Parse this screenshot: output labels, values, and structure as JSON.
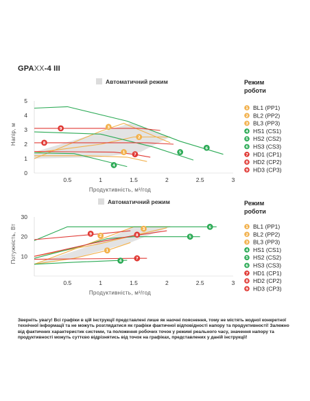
{
  "model": {
    "prefix": "GPA",
    "mid": "XX",
    "suffix": "-4 III"
  },
  "legend_items": [
    {
      "num": "1",
      "label": "BL1 (PP1)",
      "color": "#F2B04A"
    },
    {
      "num": "2",
      "label": "BL2 (PP2)",
      "color": "#F2B04A"
    },
    {
      "num": "3",
      "label": "BL3 (PP3)",
      "color": "#F2B04A"
    },
    {
      "num": "4",
      "label": "HS1 (CS1)",
      "color": "#2BAA55"
    },
    {
      "num": "5",
      "label": "HS2 (CS2)",
      "color": "#2BAA55"
    },
    {
      "num": "6",
      "label": "HS3 (CS3)",
      "color": "#2BAA55"
    },
    {
      "num": "7",
      "label": "HD1 (CP1)",
      "color": "#E03A35"
    },
    {
      "num": "8",
      "label": "HD2 (CP2)",
      "color": "#E03A35"
    },
    {
      "num": "9",
      "label": "HD3 (CP3)",
      "color": "#E03A35"
    }
  ],
  "chart_data": [
    {
      "type": "line",
      "auto_mode_label": "Автоматичний режим",
      "legend_title": [
        "Режим",
        "роботи"
      ],
      "xlabel": "Продуктивність, м³/год",
      "ylabel": "Напір, м",
      "xlim": [
        0,
        3
      ],
      "ylim": [
        0,
        5
      ],
      "x_ticks": [
        0.5,
        1,
        1.5,
        2,
        2.5,
        3
      ],
      "x_tick_labels": [
        "0.5",
        "1",
        "1.5",
        "2",
        "2.5",
        "3"
      ],
      "y_ticks": [
        0,
        1,
        2,
        3,
        4,
        5
      ],
      "y_tick_labels": [
        "0",
        "1",
        "2",
        "3",
        "4",
        "5"
      ],
      "auto_region": [
        [
          0,
          1.45
        ],
        [
          1.45,
          3.45
        ],
        [
          2.05,
          2.5
        ],
        [
          1.6,
          1.45
        ],
        [
          1.0,
          1.1
        ],
        [
          0,
          1.0
        ]
      ],
      "series": [
        {
          "name": "BL1 (PP1)",
          "marker": "1",
          "color": "#F2B04A",
          "points": [
            [
              0,
              1.2
            ],
            [
              0.8,
              1.2
            ],
            [
              1.4,
              1.1
            ],
            [
              1.7,
              0.8
            ]
          ],
          "marker_at": [
            1.35,
            1.45
          ]
        },
        {
          "name": "BL2 (PP2)",
          "marker": "2",
          "color": "#F2B04A",
          "points": [
            [
              0,
              1.4
            ],
            [
              1.0,
              2.0
            ],
            [
              1.5,
              2.5
            ],
            [
              2.05,
              2.5
            ]
          ],
          "marker_at": [
            1.58,
            2.5
          ]
        },
        {
          "name": "BL3 (PP3)",
          "marker": "3",
          "color": "#F2B04A",
          "points": [
            [
              0,
              1.0
            ],
            [
              1.0,
              2.9
            ],
            [
              1.35,
              3.45
            ],
            [
              2.05,
              2.1
            ]
          ],
          "marker_at": [
            1.12,
            3.2
          ]
        },
        {
          "name": "HS1 (CS1)",
          "marker": "4",
          "color": "#2BAA55",
          "points": [
            [
              0,
              1.4
            ],
            [
              0.6,
              1.35
            ],
            [
              1.0,
              0.9
            ],
            [
              1.4,
              0.45
            ]
          ],
          "marker_at": [
            1.2,
            0.55
          ]
        },
        {
          "name": "HS2 (CS2)",
          "marker": "5",
          "color": "#2BAA55",
          "points": [
            [
              0,
              2.85
            ],
            [
              1.0,
              2.7
            ],
            [
              1.8,
              1.8
            ],
            [
              2.4,
              0.9
            ]
          ],
          "marker_at": [
            2.2,
            1.45
          ]
        },
        {
          "name": "HS3 (CS3)",
          "marker": "6",
          "color": "#2BAA55",
          "points": [
            [
              0,
              4.5
            ],
            [
              0.5,
              4.6
            ],
            [
              1.4,
              3.6
            ],
            [
              2.2,
              2.2
            ],
            [
              2.85,
              1.3
            ]
          ],
          "marker_at": [
            2.6,
            1.75
          ]
        },
        {
          "name": "HD1 (CP1)",
          "marker": "7",
          "color": "#E03A35",
          "points": [
            [
              0,
              1.5
            ],
            [
              1.2,
              1.45
            ],
            [
              1.5,
              1.3
            ],
            [
              1.75,
              1.1
            ]
          ],
          "marker_at": [
            1.52,
            1.3
          ]
        },
        {
          "name": "HD2 (CP2)",
          "marker": "8",
          "color": "#E03A35",
          "points": [
            [
              0,
              2.1
            ],
            [
              1.7,
              2.1
            ],
            [
              2.1,
              2.0
            ]
          ],
          "marker_at": [
            0.15,
            2.1
          ]
        },
        {
          "name": "HD3 (CP3)",
          "marker": "9",
          "color": "#E03A35",
          "points": [
            [
              0,
              3.1
            ],
            [
              1.6,
              3.1
            ],
            [
              1.9,
              2.95
            ]
          ],
          "marker_at": [
            0.4,
            3.1
          ]
        }
      ]
    },
    {
      "type": "line",
      "auto_mode_label": "Автоматичний режим",
      "legend_title": [
        "Режим",
        "роботи"
      ],
      "xlabel": "Продуктивність, м³/год",
      "ylabel": "Потужність, Вт",
      "xlim": [
        0,
        3
      ],
      "ylim": [
        0,
        30
      ],
      "x_ticks": [
        0.5,
        1,
        1.5,
        2,
        2.5,
        3
      ],
      "x_tick_labels": [
        "0.5",
        "1",
        "1.5",
        "2",
        "2.5",
        "3"
      ],
      "y_ticks": [
        0,
        10,
        20,
        30
      ],
      "y_tick_labels": [
        "",
        "10",
        "20",
        "30"
      ],
      "auto_region": [
        [
          0,
          6.0
        ],
        [
          0.9,
          16.0
        ],
        [
          1.5,
          25.0
        ],
        [
          2.05,
          25.0
        ],
        [
          1.45,
          17.0
        ],
        [
          0.6,
          9.0
        ]
      ],
      "series": [
        {
          "name": "BL1 (PP1)",
          "marker": "1",
          "color": "#F2B04A",
          "points": [
            [
              0,
              6.0
            ],
            [
              0.6,
              9.0
            ],
            [
              1.1,
              13.0
            ],
            [
              1.45,
              17.0
            ]
          ],
          "marker_at": [
            1.1,
            13.0
          ]
        },
        {
          "name": "BL2 (PP2)",
          "marker": "2",
          "color": "#F2B04A",
          "points": [
            [
              0,
              10.0
            ],
            [
              1.0,
              16.5
            ],
            [
              1.55,
              21.0
            ],
            [
              2.0,
              24.5
            ]
          ],
          "marker_at": [
            1.0,
            20.5
          ]
        },
        {
          "name": "BL3 (PP3)",
          "marker": "3",
          "color": "#F2B04A",
          "points": [
            [
              0,
              6.0
            ],
            [
              1.5,
              25.0
            ],
            [
              2.05,
              25.0
            ]
          ],
          "marker_at": [
            1.65,
            24.0
          ]
        },
        {
          "name": "HS1 (CS1)",
          "marker": "4",
          "color": "#2BAA55",
          "points": [
            [
              0,
              6.0
            ],
            [
              0.6,
              7.0
            ],
            [
              1.2,
              7.8
            ],
            [
              1.4,
              8.0
            ]
          ],
          "marker_at": [
            1.3,
            7.8
          ]
        },
        {
          "name": "HS2 (CS2)",
          "marker": "5",
          "color": "#2BAA55",
          "points": [
            [
              0,
              9.0
            ],
            [
              0.8,
              16.0
            ],
            [
              1.1,
              19.0
            ],
            [
              1.5,
              20.0
            ],
            [
              2.5,
              20.0
            ]
          ],
          "marker_at": [
            2.35,
            20.0
          ]
        },
        {
          "name": "HS3 (CS3)",
          "marker": "6",
          "color": "#2BAA55",
          "points": [
            [
              0,
              18.0
            ],
            [
              0.5,
              25.0
            ],
            [
              2.75,
              25.0
            ]
          ],
          "marker_at": [
            2.65,
            25.0
          ]
        },
        {
          "name": "HD1 (CP1)",
          "marker": "7",
          "color": "#E03A35",
          "points": [
            [
              0,
              8.5
            ],
            [
              1.55,
              9.0
            ],
            [
              1.7,
              9.0
            ]
          ],
          "marker_at": [
            1.55,
            9.0
          ]
        },
        {
          "name": "HD2 (CP2)",
          "marker": "8",
          "color": "#E03A35",
          "points": [
            [
              0,
              10.0
            ],
            [
              1.0,
              17.5
            ],
            [
              1.5,
              20.5
            ],
            [
              2.0,
              23.0
            ]
          ],
          "marker_at": [
            1.55,
            21.0
          ]
        },
        {
          "name": "HD3 (CP3)",
          "marker": "9",
          "color": "#E03A35",
          "points": [
            [
              0,
              18.5
            ],
            [
              1.0,
              21.5
            ],
            [
              1.45,
              23.0
            ]
          ],
          "marker_at": [
            0.85,
            21.5
          ]
        }
      ]
    }
  ],
  "note": "Зверніть увагу! Всі графіки в цій інструкції представлені лише як наочні пояснення, тому не містять жодної конкретної технічної інформації та не можуть розглядатися як графіки фактичної відповідності напору та продуктивності! Залежно від фактичних характеристик системи, та положення робочих точок у режимі реального часу, значення напору та продуктивності можуть суттєво відрізнятись від точок на графіках, представлених у даній інструкції!"
}
